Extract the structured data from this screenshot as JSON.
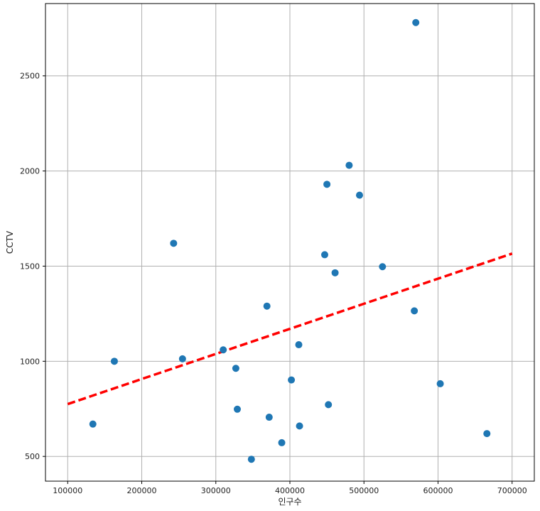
{
  "chart_data": {
    "type": "scatter",
    "title": "",
    "xlabel": "인구수",
    "ylabel": "CCTV",
    "xlim": [
      70000,
      730000
    ],
    "ylim": [
      370,
      2880
    ],
    "xticks": [
      100000,
      200000,
      300000,
      400000,
      500000,
      600000,
      700000
    ],
    "xtick_labels": [
      "100000",
      "200000",
      "300000",
      "400000",
      "500000",
      "600000",
      "700000"
    ],
    "yticks": [
      500,
      1000,
      1500,
      2000,
      2500
    ],
    "ytick_labels": [
      "500",
      "1000",
      "1500",
      "2000",
      "2500"
    ],
    "grid": true,
    "points_color": "#1f77b4",
    "fit_line_color": "#ff0000",
    "points": [
      {
        "x": 570000,
        "y": 2780
      },
      {
        "x": 480000,
        "y": 2030
      },
      {
        "x": 450000,
        "y": 1930
      },
      {
        "x": 494000,
        "y": 1873
      },
      {
        "x": 243000,
        "y": 1620
      },
      {
        "x": 447000,
        "y": 1560
      },
      {
        "x": 461000,
        "y": 1465
      },
      {
        "x": 525000,
        "y": 1497
      },
      {
        "x": 369000,
        "y": 1290
      },
      {
        "x": 568000,
        "y": 1265
      },
      {
        "x": 412000,
        "y": 1087
      },
      {
        "x": 310000,
        "y": 1060
      },
      {
        "x": 163000,
        "y": 1000
      },
      {
        "x": 255000,
        "y": 1013
      },
      {
        "x": 327000,
        "y": 963
      },
      {
        "x": 402000,
        "y": 902
      },
      {
        "x": 603000,
        "y": 882
      },
      {
        "x": 452000,
        "y": 772
      },
      {
        "x": 329000,
        "y": 748
      },
      {
        "x": 372000,
        "y": 706
      },
      {
        "x": 134000,
        "y": 670
      },
      {
        "x": 413000,
        "y": 660
      },
      {
        "x": 666000,
        "y": 620
      },
      {
        "x": 389000,
        "y": 572
      },
      {
        "x": 348000,
        "y": 485
      }
    ],
    "fit_line": {
      "x": [
        100000,
        700000
      ],
      "y": [
        775,
        1566
      ]
    }
  }
}
